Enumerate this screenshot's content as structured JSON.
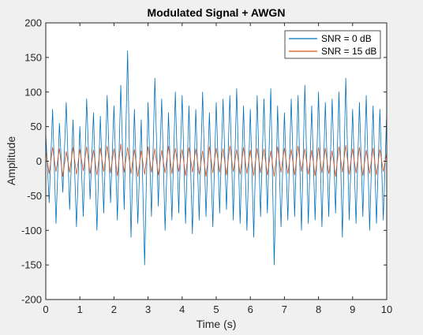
{
  "chart_data": {
    "type": "line",
    "title": "Modulated Signal + AWGN",
    "xlabel": "Time (s)",
    "ylabel": "Amplitude",
    "xlim": [
      0,
      10
    ],
    "ylim": [
      -200,
      200
    ],
    "xticks": [
      0,
      1,
      2,
      3,
      4,
      5,
      6,
      7,
      8,
      9,
      10
    ],
    "yticks": [
      -200,
      -150,
      -100,
      -50,
      0,
      50,
      100,
      150,
      200
    ],
    "grid": false,
    "legend_position": "top-right",
    "series": [
      {
        "name": "SNR = 0 dB",
        "color": "#0072BD",
        "x": [
          0.0,
          0.1,
          0.2,
          0.3,
          0.4,
          0.5,
          0.6,
          0.7,
          0.8,
          0.9,
          1.0,
          1.1,
          1.2,
          1.3,
          1.4,
          1.5,
          1.6,
          1.7,
          1.8,
          1.9,
          2.0,
          2.1,
          2.2,
          2.3,
          2.4,
          2.5,
          2.6,
          2.7,
          2.8,
          2.9,
          3.0,
          3.1,
          3.2,
          3.3,
          3.4,
          3.5,
          3.6,
          3.7,
          3.8,
          3.9,
          4.0,
          4.1,
          4.2,
          4.3,
          4.4,
          4.5,
          4.6,
          4.7,
          4.8,
          4.9,
          5.0,
          5.1,
          5.2,
          5.3,
          5.4,
          5.5,
          5.6,
          5.7,
          5.8,
          5.9,
          6.0,
          6.1,
          6.2,
          6.3,
          6.4,
          6.5,
          6.6,
          6.7,
          6.8,
          6.9,
          7.0,
          7.1,
          7.2,
          7.3,
          7.4,
          7.5,
          7.6,
          7.7,
          7.8,
          7.9,
          8.0,
          8.1,
          8.2,
          8.3,
          8.4,
          8.5,
          8.6,
          8.7,
          8.8,
          8.9,
          9.0,
          9.1,
          9.2,
          9.3,
          9.4,
          9.5,
          9.6,
          9.7,
          9.8,
          9.9,
          10.0
        ],
        "values": [
          40,
          -60,
          75,
          -90,
          55,
          -45,
          85,
          -70,
          60,
          -95,
          50,
          -80,
          90,
          -55,
          70,
          -100,
          65,
          -75,
          95,
          -60,
          80,
          -85,
          110,
          -70,
          160,
          -110,
          75,
          -90,
          60,
          -150,
          85,
          -80,
          120,
          -65,
          90,
          -100,
          70,
          -85,
          100,
          -75,
          95,
          -90,
          80,
          -105,
          75,
          -85,
          100,
          -80,
          70,
          -95,
          85,
          -75,
          90,
          -70,
          95,
          -85,
          105,
          -90,
          80,
          -100,
          75,
          -110,
          95,
          -80,
          90,
          -75,
          105,
          -150,
          80,
          -95,
          70,
          -85,
          90,
          -80,
          95,
          -100,
          110,
          -90,
          80,
          -85,
          100,
          -95,
          85,
          -80,
          90,
          -75,
          100,
          -110,
          120,
          -85,
          75,
          -90,
          85,
          -80,
          95,
          -100,
          80,
          -90,
          75,
          -85,
          70
        ]
      },
      {
        "name": "SNR = 15 dB",
        "color": "#D95319",
        "x": [
          0.0,
          0.1,
          0.2,
          0.3,
          0.4,
          0.5,
          0.6,
          0.7,
          0.8,
          0.9,
          1.0,
          1.1,
          1.2,
          1.3,
          1.4,
          1.5,
          1.6,
          1.7,
          1.8,
          1.9,
          2.0,
          2.1,
          2.2,
          2.3,
          2.4,
          2.5,
          2.6,
          2.7,
          2.8,
          2.9,
          3.0,
          3.1,
          3.2,
          3.3,
          3.4,
          3.5,
          3.6,
          3.7,
          3.8,
          3.9,
          4.0,
          4.1,
          4.2,
          4.3,
          4.4,
          4.5,
          4.6,
          4.7,
          4.8,
          4.9,
          5.0,
          5.1,
          5.2,
          5.3,
          5.4,
          5.5,
          5.6,
          5.7,
          5.8,
          5.9,
          6.0,
          6.1,
          6.2,
          6.3,
          6.4,
          6.5,
          6.6,
          6.7,
          6.8,
          6.9,
          7.0,
          7.1,
          7.2,
          7.3,
          7.4,
          7.5,
          7.6,
          7.7,
          7.8,
          7.9,
          8.0,
          8.1,
          8.2,
          8.3,
          8.4,
          8.5,
          8.6,
          8.7,
          8.8,
          8.9,
          9.0,
          9.1,
          9.2,
          9.3,
          9.4,
          9.5,
          9.6,
          9.7,
          9.8,
          9.9,
          10.0
        ],
        "values": [
          15,
          -18,
          20,
          -15,
          18,
          -22,
          14,
          -16,
          20,
          -19,
          17,
          -14,
          21,
          -18,
          16,
          -20,
          19,
          -15,
          22,
          -17,
          18,
          -21,
          25,
          -16,
          20,
          -18,
          17,
          -22,
          15,
          -19,
          21,
          -16,
          18,
          -20,
          16,
          -17,
          22,
          -18,
          19,
          -15,
          17,
          -21,
          20,
          -16,
          18,
          -19,
          15,
          -22,
          21,
          -17,
          19,
          -16,
          18,
          -20,
          22,
          -15,
          17,
          -19,
          20,
          -18,
          16,
          -21,
          19,
          -17,
          18,
          -20,
          15,
          -22,
          21,
          -16,
          19,
          -18,
          17,
          -20,
          22,
          -15,
          18,
          -19,
          16,
          -21,
          20,
          -17,
          19,
          -18,
          15,
          -22,
          21,
          -16,
          23,
          -19,
          18,
          -17,
          20,
          -21,
          16,
          -18,
          19,
          -20,
          17,
          -15,
          12
        ]
      }
    ]
  }
}
